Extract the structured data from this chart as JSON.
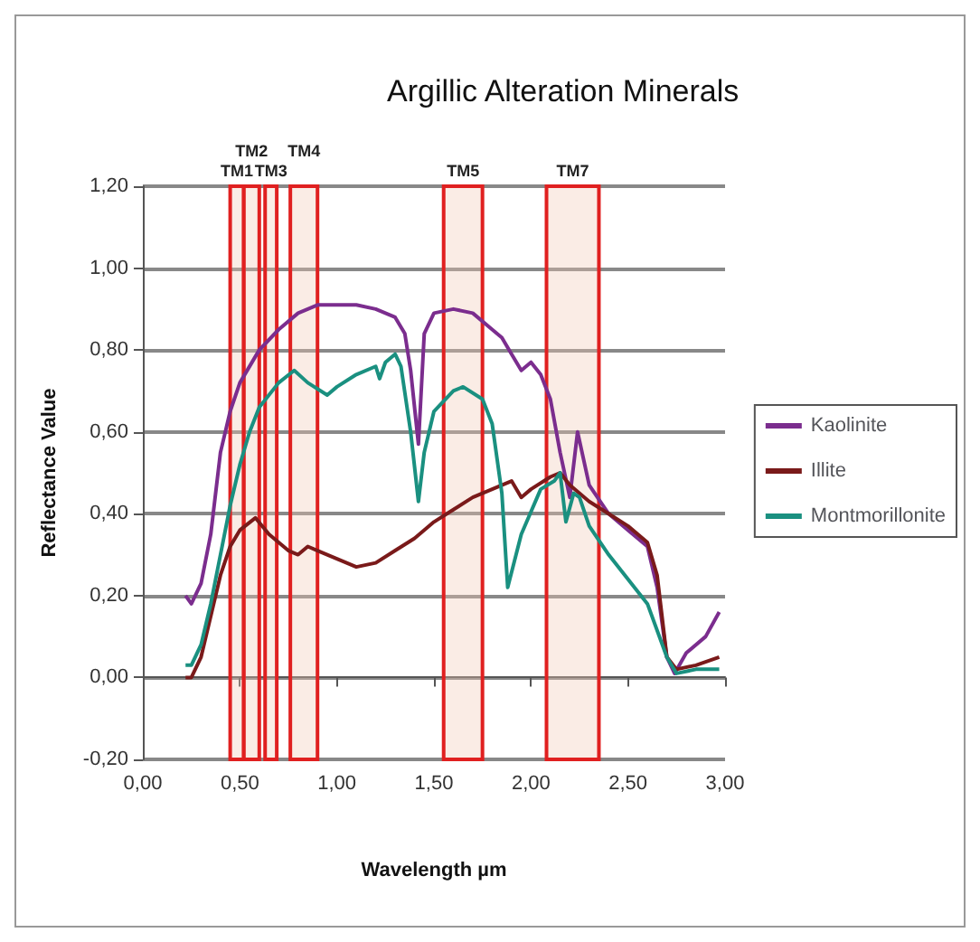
{
  "chart_data": {
    "type": "line",
    "title": "Argillic Alteration Minerals",
    "xlabel": "Wavelength µm",
    "ylabel": "Reflectance Value",
    "xlim": [
      0,
      3
    ],
    "xticks": [
      {
        "value": 0,
        "label": "0,00"
      },
      {
        "value": 0.5,
        "label": "0,50"
      },
      {
        "value": 1,
        "label": "1,00"
      },
      {
        "value": 1.5,
        "label": "1,50"
      },
      {
        "value": 2,
        "label": "2,00"
      },
      {
        "value": 2.5,
        "label": "2,50"
      },
      {
        "value": 3,
        "label": "3,00"
      }
    ],
    "ylim": [
      -0.2,
      1.2
    ],
    "yticks": [
      {
        "value": -0.2,
        "label": "-0,20"
      },
      {
        "value": 0,
        "label": "0,00"
      },
      {
        "value": 0.2,
        "label": "0,20"
      },
      {
        "value": 0.4,
        "label": "0,40"
      },
      {
        "value": 0.6,
        "label": "0,60"
      },
      {
        "value": 0.8,
        "label": "0,80"
      },
      {
        "value": 1,
        "label": "1,00"
      },
      {
        "value": 1.2,
        "label": "1,20"
      }
    ],
    "grid": "y",
    "legend": "right",
    "marker": "none",
    "line_style": "solid",
    "bands": [
      {
        "axis": "x",
        "from": 0.45,
        "to": 0.52,
        "label": "TM1",
        "color": "#e02020"
      },
      {
        "axis": "x",
        "from": 0.52,
        "to": 0.6,
        "label": "TM2",
        "color": "#e02020"
      },
      {
        "axis": "x",
        "from": 0.63,
        "to": 0.69,
        "label": "TM3",
        "color": "#e02020"
      },
      {
        "axis": "x",
        "from": 0.76,
        "to": 0.9,
        "label": "TM4",
        "color": "#e02020"
      },
      {
        "axis": "x",
        "from": 1.55,
        "to": 1.75,
        "label": "TM5",
        "color": "#e02020"
      },
      {
        "axis": "x",
        "from": 2.08,
        "to": 2.35,
        "label": "TM7",
        "color": "#e02020"
      }
    ],
    "series": [
      {
        "name": "Kaolinite",
        "color": "#7b2d8e",
        "x": [
          0.22,
          0.25,
          0.3,
          0.35,
          0.4,
          0.45,
          0.5,
          0.6,
          0.7,
          0.8,
          0.9,
          1,
          1.1,
          1.2,
          1.3,
          1.35,
          1.38,
          1.42,
          1.45,
          1.5,
          1.6,
          1.7,
          1.8,
          1.85,
          1.9,
          1.95,
          2,
          2.05,
          2.1,
          2.15,
          2.2,
          2.24,
          2.3,
          2.4,
          2.5,
          2.6,
          2.65,
          2.7,
          2.74,
          2.8,
          2.9,
          2.97
        ],
        "values": [
          0.2,
          0.18,
          0.23,
          0.35,
          0.55,
          0.65,
          0.72,
          0.8,
          0.85,
          0.89,
          0.91,
          0.91,
          0.91,
          0.9,
          0.88,
          0.84,
          0.75,
          0.57,
          0.84,
          0.89,
          0.9,
          0.89,
          0.85,
          0.83,
          0.79,
          0.75,
          0.77,
          0.74,
          0.68,
          0.55,
          0.44,
          0.6,
          0.47,
          0.4,
          0.36,
          0.32,
          0.22,
          0.05,
          0.01,
          0.06,
          0.1,
          0.16
        ]
      },
      {
        "name": "Illite",
        "color": "#7a1a1a",
        "x": [
          0.22,
          0.25,
          0.3,
          0.35,
          0.4,
          0.45,
          0.5,
          0.58,
          0.65,
          0.75,
          0.8,
          0.85,
          0.9,
          1,
          1.1,
          1.2,
          1.3,
          1.4,
          1.5,
          1.6,
          1.7,
          1.8,
          1.9,
          1.95,
          2,
          2.1,
          2.15,
          2.2,
          2.3,
          2.4,
          2.5,
          2.6,
          2.65,
          2.7,
          2.75,
          2.85,
          2.97
        ],
        "values": [
          0,
          0,
          0.05,
          0.15,
          0.25,
          0.32,
          0.36,
          0.39,
          0.35,
          0.31,
          0.3,
          0.32,
          0.31,
          0.29,
          0.27,
          0.28,
          0.31,
          0.34,
          0.38,
          0.41,
          0.44,
          0.46,
          0.48,
          0.44,
          0.46,
          0.49,
          0.5,
          0.47,
          0.43,
          0.4,
          0.37,
          0.33,
          0.25,
          0.05,
          0.02,
          0.03,
          0.05
        ]
      },
      {
        "name": "Montmorillonite",
        "color": "#1a9080",
        "x": [
          0.22,
          0.25,
          0.3,
          0.35,
          0.4,
          0.45,
          0.5,
          0.55,
          0.6,
          0.7,
          0.78,
          0.85,
          0.95,
          1,
          1.1,
          1.2,
          1.22,
          1.25,
          1.3,
          1.33,
          1.38,
          1.42,
          1.45,
          1.5,
          1.6,
          1.65,
          1.75,
          1.8,
          1.85,
          1.88,
          1.95,
          2.05,
          2.12,
          2.15,
          2.18,
          2.22,
          2.25,
          2.3,
          2.4,
          2.5,
          2.6,
          2.7,
          2.75,
          2.85,
          2.97
        ],
        "values": [
          0.03,
          0.03,
          0.08,
          0.18,
          0.3,
          0.42,
          0.52,
          0.6,
          0.66,
          0.72,
          0.75,
          0.72,
          0.69,
          0.71,
          0.74,
          0.76,
          0.73,
          0.77,
          0.79,
          0.76,
          0.6,
          0.43,
          0.55,
          0.65,
          0.7,
          0.71,
          0.68,
          0.62,
          0.45,
          0.22,
          0.35,
          0.46,
          0.48,
          0.5,
          0.38,
          0.45,
          0.44,
          0.37,
          0.3,
          0.24,
          0.18,
          0.05,
          0.01,
          0.02,
          0.02
        ]
      }
    ]
  }
}
